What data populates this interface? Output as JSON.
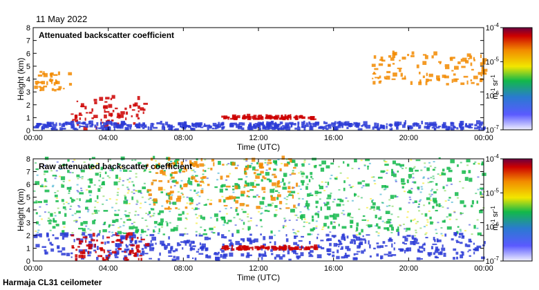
{
  "date": "11 May 2022",
  "footer": "Harmaja CL31 ceilometer",
  "colors": {
    "low": "#e6e6ff",
    "blue": "#2b3bd6",
    "green": "#12b84a",
    "yellow": "#f2e600",
    "orange": "#f28a00",
    "red": "#cc0000",
    "max": "#7a0033"
  },
  "chart_data": [
    {
      "type": "heatmap",
      "title": "Attenuated backscatter coefficient",
      "xlabel": "Time (UTC)",
      "ylabel": "Height (km)",
      "x_ticks": [
        "00:00",
        "04:00",
        "08:00",
        "12:00",
        "16:00",
        "20:00",
        "00:00"
      ],
      "y_ticks": [
        "0",
        "1",
        "2",
        "3",
        "4",
        "5",
        "6",
        "7",
        "8"
      ],
      "xlim": [
        0,
        24
      ],
      "ylim": [
        0,
        8
      ],
      "colorbar": {
        "scale": "log",
        "label": "m-1 sr-1",
        "ticks": [
          "10-4",
          "10-5",
          "10-6",
          "10-7"
        ],
        "range": [
          1e-07,
          0.0001
        ]
      },
      "features": [
        {
          "t": [
            0,
            2
          ],
          "h": [
            3.0,
            4.5
          ],
          "level": "orange"
        },
        {
          "t": [
            2,
            6
          ],
          "h": [
            0.0,
            2.5
          ],
          "level": "red"
        },
        {
          "t": [
            10,
            15
          ],
          "h": [
            0.8,
            1.0
          ],
          "level": "red"
        },
        {
          "t": [
            18,
            24
          ],
          "h": [
            3.5,
            6.0
          ],
          "level": "orange"
        },
        {
          "t": [
            0,
            24
          ],
          "h": [
            0.0,
            0.5
          ],
          "level": "blue"
        }
      ]
    },
    {
      "type": "heatmap",
      "title": "Raw attenuated backscatter coefficient",
      "xlabel": "Time (UTC)",
      "ylabel": "Height (km)",
      "x_ticks": [
        "00:00",
        "04:00",
        "08:00",
        "12:00",
        "16:00",
        "20:00",
        "00:00"
      ],
      "y_ticks": [
        "0",
        "1",
        "2",
        "3",
        "4",
        "5",
        "6",
        "7",
        "8"
      ],
      "xlim": [
        0,
        24
      ],
      "ylim": [
        0,
        8
      ],
      "colorbar": {
        "scale": "log",
        "label": "m-1 sr-1",
        "ticks": [
          "10-4",
          "10-5",
          "10-6",
          "10-7"
        ],
        "range": [
          1e-07,
          0.0001
        ]
      },
      "features": [
        {
          "t": [
            0,
            24
          ],
          "h": [
            2.0,
            8.0
          ],
          "level": "green"
        },
        {
          "t": [
            6,
            14
          ],
          "h": [
            4.0,
            8.0
          ],
          "level": "orange"
        },
        {
          "t": [
            0,
            24
          ],
          "h": [
            0.0,
            2.0
          ],
          "level": "blue"
        },
        {
          "t": [
            2,
            6
          ],
          "h": [
            0.0,
            2.0
          ],
          "level": "red"
        },
        {
          "t": [
            10,
            15
          ],
          "h": [
            0.8,
            1.0
          ],
          "level": "red"
        }
      ]
    }
  ]
}
